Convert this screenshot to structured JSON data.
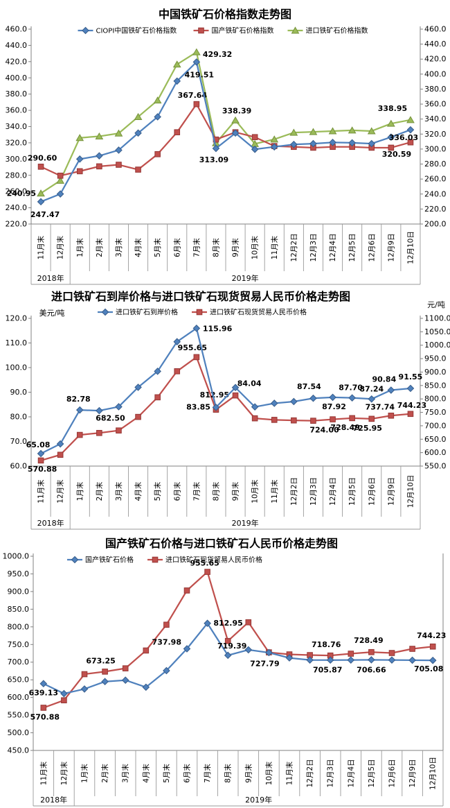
{
  "chart_data": [
    {
      "type": "line",
      "title": "中国铁矿石价格指数走势图",
      "categories": [
        "11月末",
        "12月末",
        "1月末",
        "2月末",
        "3月末",
        "4月末",
        "5月末",
        "6月末",
        "7月末",
        "8月末",
        "9月末",
        "10月末",
        "11月末",
        "12月2日",
        "12月3日",
        "12月4日",
        "12月5日",
        "12月6日",
        "12月9日",
        "12月10日"
      ],
      "year_groups": [
        {
          "label": "2018年",
          "count": 2
        },
        {
          "label": "2019年",
          "count": 18
        }
      ],
      "left_axis": {
        "min": 220,
        "max": 460,
        "step": 20
      },
      "right_axis": {
        "min": 200,
        "max": 460,
        "step": 20
      },
      "legend_position": "top",
      "grid": false,
      "series": [
        {
          "name": "进口铁矿石价格指数",
          "color": "#9BBB59",
          "edge": "#76923C",
          "marker": "triangle",
          "axis": "right",
          "values": [
            240.95,
            258,
            315,
            317,
            321,
            343,
            365,
            413,
            429.32,
            308,
            338.39,
            307,
            313,
            322,
            323,
            324,
            325,
            324,
            334,
            338.95
          ],
          "point_labels": [
            {
              "i": 0,
              "text": "240.95",
              "dx": -7,
              "dy": 4,
              "anchor": "end"
            },
            {
              "i": 8,
              "text": "429.32",
              "dx": 9,
              "dy": 7,
              "anchor": "start"
            },
            {
              "i": 10,
              "text": "338.39",
              "dx": 2,
              "dy": -10
            },
            {
              "i": 19,
              "text": "338.95",
              "dx": -26,
              "dy": -13
            }
          ]
        },
        {
          "name": "国产铁矿石价格指数",
          "color": "#C0504D",
          "edge": "#953735",
          "marker": "square",
          "axis": "left",
          "values": [
            290.6,
            279.5,
            285,
            291,
            293,
            287,
            306,
            333,
            367.64,
            324,
            333,
            327,
            316,
            315,
            314,
            315,
            315,
            314,
            314,
            320.59
          ],
          "point_labels": [
            {
              "i": 0,
              "text": "290.60",
              "dx": 2,
              "dy": -9
            },
            {
              "i": 8,
              "text": "367.64",
              "dx": -6,
              "dy": -9
            },
            {
              "i": 19,
              "text": "320.59",
              "dx": -20,
              "dy": 21
            }
          ]
        },
        {
          "name": "CIOPI中国铁矿石价格指数",
          "color": "#4F81BD",
          "edge": "#385D8A",
          "marker": "diamond",
          "axis": "left",
          "values": [
            247.47,
            257,
            300,
            304,
            311,
            332,
            352,
            396,
            419.51,
            313.09,
            332,
            312,
            315,
            318,
            319,
            320.5,
            320,
            319,
            327,
            336.03
          ],
          "point_labels": [
            {
              "i": 0,
              "text": "247.47",
              "dx": 6,
              "dy": 22
            },
            {
              "i": 8,
              "text": "419.51",
              "dx": 4,
              "dy": 22
            },
            {
              "i": 9,
              "text": "313.09",
              "dx": -3,
              "dy": 20
            },
            {
              "i": 19,
              "text": "336.03",
              "dx": -10,
              "dy": 15
            }
          ]
        }
      ],
      "legend_order": [
        2,
        1,
        0
      ]
    },
    {
      "type": "line",
      "title": "进口铁矿石到岸价格与进口铁矿石现货贸易人民币价格走势图",
      "left_unit": "美元/吨",
      "right_unit": "元/吨",
      "categories": [
        "11月末",
        "12月末",
        "1月末",
        "2月末",
        "3月末",
        "4月末",
        "5月末",
        "6月末",
        "7月末",
        "8月末",
        "9月末",
        "10月末",
        "11月末",
        "12月2日",
        "12月3日",
        "12月4日",
        "12月5日",
        "12月6日",
        "12月9日",
        "12月10日"
      ],
      "year_groups": [
        {
          "label": "2018年",
          "count": 2
        },
        {
          "label": "2019年",
          "count": 18
        }
      ],
      "left_axis": {
        "min": 60,
        "max": 120,
        "step": 10
      },
      "right_axis": {
        "min": 550,
        "max": 1100,
        "step": 50
      },
      "grid": false,
      "series": [
        {
          "name": "进口铁矿石现货贸易人民币价格",
          "color": "#C0504D",
          "edge": "#953735",
          "marker": "square",
          "axis": "right",
          "values": [
            570.88,
            592,
            666,
            673.25,
            682.5,
            733,
            806,
            903,
            955.65,
            760,
            812.95,
            727.79,
            722,
            720,
            718.76,
            724.0,
            728.49,
            725.95,
            737.74,
            744.23
          ],
          "point_labels": [
            {
              "i": 0,
              "text": "570.88",
              "dx": 2,
              "dy": 16
            },
            {
              "i": 4,
              "text": "682.50",
              "dx": -12,
              "dy": -14
            },
            {
              "i": 8,
              "text": "955.65",
              "dx": -6,
              "dy": -10
            },
            {
              "i": 10,
              "text": "812.95",
              "dx": -9,
              "dy": 3,
              "anchor": "end"
            },
            {
              "i": 15,
              "text": "724.00",
              "dx": -12,
              "dy": 19
            },
            {
              "i": 16,
              "text": "728.49",
              "dx": -10,
              "dy": 17
            },
            {
              "i": 17,
              "text": "725.95",
              "dx": -6,
              "dy": 17
            },
            {
              "i": 18,
              "text": "737.74",
              "dx": -16,
              "dy": -9
            },
            {
              "i": 19,
              "text": "744.23",
              "dx": 2,
              "dy": -9
            }
          ]
        },
        {
          "name": "进口铁矿石到岸价格",
          "color": "#4F81BD",
          "edge": "#385D8A",
          "marker": "diamond",
          "axis": "left",
          "values": [
            65.08,
            69,
            82.78,
            82.5,
            84.1,
            92,
            98.5,
            110.5,
            115.96,
            83.85,
            91.9,
            84.04,
            85.5,
            86.2,
            87.54,
            87.92,
            87.7,
            87.24,
            90.84,
            91.55
          ],
          "point_labels": [
            {
              "i": 0,
              "text": "65.08",
              "dx": -4,
              "dy": -9
            },
            {
              "i": 2,
              "text": "82.78",
              "dx": -2,
              "dy": -12
            },
            {
              "i": 8,
              "text": "115.96",
              "dx": 9,
              "dy": 4,
              "anchor": "start"
            },
            {
              "i": 9,
              "text": "83.85",
              "dx": -8,
              "dy": 3,
              "anchor": "end"
            },
            {
              "i": 11,
              "text": "84.04",
              "dx": -8,
              "dy": -30
            },
            {
              "i": 14,
              "text": "87.54",
              "dx": -6,
              "dy": -13
            },
            {
              "i": 15,
              "text": "87.92",
              "dx": 2,
              "dy": 17
            },
            {
              "i": 16,
              "text": "87.70",
              "dx": -2,
              "dy": -11
            },
            {
              "i": 17,
              "text": "87.24",
              "dx": 0,
              "dy": -11
            },
            {
              "i": 18,
              "text": "90.84",
              "dx": -10,
              "dy": -12
            },
            {
              "i": 19,
              "text": "91.55",
              "dx": 0,
              "dy": -13
            }
          ]
        }
      ],
      "legend_order": [
        1,
        0
      ]
    },
    {
      "type": "line",
      "title": "国产铁矿石价格与进口铁矿石人民币价格走势图",
      "categories": [
        "11月末",
        "12月末",
        "1月末",
        "2月末",
        "3月末",
        "4月末",
        "5月末",
        "6月末",
        "7月末",
        "8月末",
        "9月末",
        "10月末",
        "11月末",
        "12月2日",
        "12月3日",
        "12月4日",
        "12月5日",
        "12月6日",
        "12月9日",
        "12月10日"
      ],
      "year_groups": [
        {
          "label": "2018年",
          "count": 2
        },
        {
          "label": "2019年",
          "count": 18
        }
      ],
      "left_axis": {
        "min": 450,
        "max": 1000,
        "step": 50
      },
      "right_axis": null,
      "grid": false,
      "series": [
        {
          "name": "进口铁矿石现货贸易人民币价格",
          "color": "#C0504D",
          "edge": "#953735",
          "marker": "square",
          "axis": "left",
          "values": [
            570.88,
            592,
            666,
            673.25,
            682.5,
            733,
            806,
            903,
            955.65,
            760,
            812.95,
            727.79,
            722,
            720,
            718.76,
            724.0,
            728.49,
            725.95,
            737.74,
            744.23
          ],
          "point_labels": [
            {
              "i": 0,
              "text": "570.88",
              "dx": 2,
              "dy": 17
            },
            {
              "i": 3,
              "text": "673.25",
              "dx": -6,
              "dy": -12
            },
            {
              "i": 8,
              "text": "955.65",
              "dx": -4,
              "dy": -9
            },
            {
              "i": 10,
              "text": "812.95",
              "dx": -8,
              "dy": 5,
              "anchor": "end"
            },
            {
              "i": 11,
              "text": "727.79",
              "dx": -6,
              "dy": 20
            },
            {
              "i": 14,
              "text": "718.76",
              "dx": -6,
              "dy": -12
            },
            {
              "i": 16,
              "text": "728.49",
              "dx": -4,
              "dy": -13
            },
            {
              "i": 19,
              "text": "744.23",
              "dx": -2,
              "dy": -12
            }
          ]
        },
        {
          "name": "国产铁矿石价格",
          "color": "#4F81BD",
          "edge": "#385D8A",
          "marker": "diamond",
          "axis": "left",
          "values": [
            639.13,
            611,
            624,
            645,
            649,
            629,
            676,
            737.98,
            810,
            719.39,
            735,
            727,
            712,
            706,
            705.87,
            706,
            706.66,
            706,
            705.5,
            705.08
          ],
          "point_labels": [
            {
              "i": 0,
              "text": "639.13",
              "dx": 0,
              "dy": 17
            },
            {
              "i": 7,
              "text": "737.98",
              "dx": -8,
              "dy": -6,
              "anchor": "end"
            },
            {
              "i": 9,
              "text": "719.39",
              "dx": 6,
              "dy": -10
            },
            {
              "i": 14,
              "text": "705.87",
              "dx": -4,
              "dy": 18
            },
            {
              "i": 16,
              "text": "706.66",
              "dx": 0,
              "dy": 18
            },
            {
              "i": 19,
              "text": "705.08",
              "dx": -6,
              "dy": 16
            }
          ]
        }
      ],
      "legend_order": [
        1,
        0
      ]
    }
  ],
  "colors": {
    "axis_line": "#808080",
    "separator": "#999999",
    "label_text": "#000000",
    "tick_text": "#000000"
  }
}
